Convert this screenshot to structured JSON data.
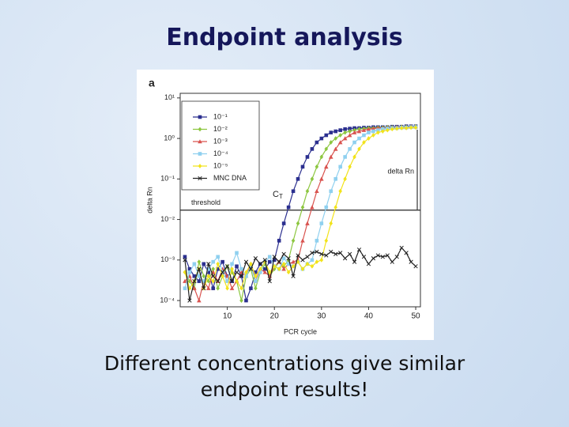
{
  "slide_title": "Endpoint analysis",
  "caption": [
    "Different concentrations give similar",
    "endpoint results!"
  ],
  "chart_data": {
    "type": "line",
    "panel_label": "a",
    "x_label": "PCR cycle",
    "y_label": "delta Rn",
    "log_y": true,
    "xlim": [
      0,
      51
    ],
    "ylim": [
      7e-05,
      13
    ],
    "xticks": [
      10,
      20,
      30,
      40,
      50
    ],
    "yticks": [
      {
        "value": 10,
        "label": "10¹"
      },
      {
        "value": 1,
        "label": "10⁰"
      },
      {
        "value": 0.1,
        "label": "10⁻¹"
      },
      {
        "value": 0.01,
        "label": "10⁻²"
      },
      {
        "value": 0.001,
        "label": "10⁻³"
      },
      {
        "value": 0.0001,
        "label": "10⁻⁴"
      }
    ],
    "threshold": 0.017,
    "threshold_label": "threshold",
    "ct_label": "C",
    "ct_subscript": "T",
    "delta_label": "delta Rn",
    "legend": "upper left",
    "x": [
      1,
      2,
      3,
      4,
      5,
      6,
      7,
      8,
      9,
      10,
      11,
      12,
      13,
      14,
      15,
      16,
      17,
      18,
      19,
      20,
      21,
      22,
      23,
      24,
      25,
      26,
      27,
      28,
      29,
      30,
      31,
      32,
      33,
      34,
      35,
      36,
      37,
      38,
      39,
      40,
      41,
      42,
      43,
      44,
      45,
      46,
      47,
      48,
      49,
      50
    ],
    "series": [
      {
        "name": "10⁻¹",
        "color": "#2b2f8f",
        "marker": "square",
        "values": [
          0.0012,
          0.0006,
          0.0004,
          0.0003,
          0.0008,
          0.0005,
          0.0002,
          0.0006,
          0.0009,
          0.0004,
          0.0003,
          0.0007,
          0.0004,
          0.0001,
          0.0002,
          0.0005,
          0.0008,
          0.0006,
          0.0009,
          0.001,
          0.003,
          0.008,
          0.02,
          0.05,
          0.1,
          0.2,
          0.35,
          0.55,
          0.8,
          1.0,
          1.2,
          1.4,
          1.5,
          1.6,
          1.7,
          1.75,
          1.8,
          1.8,
          1.85,
          1.85,
          1.9,
          1.9,
          1.9,
          1.9,
          1.95,
          1.95,
          1.95,
          2,
          2,
          2
        ]
      },
      {
        "name": "10⁻²",
        "color": "#8cc63f",
        "marker": "diamond",
        "values": [
          0.0005,
          0.0003,
          0.0002,
          0.0009,
          0.0004,
          0.0003,
          0.0006,
          0.0002,
          0.0004,
          0.0007,
          0.0005,
          0.0003,
          0.0001,
          0.0004,
          0.0006,
          0.0002,
          0.0005,
          0.0008,
          0.0004,
          0.0006,
          0.0009,
          0.0007,
          0.001,
          0.003,
          0.008,
          0.02,
          0.05,
          0.1,
          0.2,
          0.35,
          0.55,
          0.8,
          1.0,
          1.2,
          1.4,
          1.5,
          1.6,
          1.7,
          1.75,
          1.8,
          1.8,
          1.85,
          1.85,
          1.9,
          1.9,
          1.9,
          1.95,
          1.95,
          1.95,
          2
        ]
      },
      {
        "name": "10⁻³",
        "color": "#d9534f",
        "marker": "triangle",
        "values": [
          0.0003,
          0.0004,
          0.0002,
          0.0001,
          0.0003,
          0.0002,
          0.0005,
          0.0003,
          0.0006,
          0.0004,
          0.0002,
          0.0003,
          0.0005,
          0.0004,
          0.0008,
          0.0003,
          0.0006,
          0.0005,
          0.0004,
          0.0007,
          0.0009,
          0.0006,
          0.0008,
          0.0009,
          0.001,
          0.003,
          0.008,
          0.02,
          0.05,
          0.1,
          0.2,
          0.35,
          0.55,
          0.8,
          1.0,
          1.2,
          1.4,
          1.5,
          1.6,
          1.7,
          1.75,
          1.8,
          1.8,
          1.85,
          1.85,
          1.9,
          1.9,
          1.9,
          1.95,
          1.95
        ]
      },
      {
        "name": "10⁻⁴",
        "color": "#8fd0ef",
        "marker": "square",
        "values": [
          0.0002,
          0.0005,
          0.0008,
          0.0004,
          0.0003,
          0.0006,
          0.0009,
          0.0012,
          0.0005,
          0.0003,
          0.0008,
          0.0015,
          0.0006,
          0.0004,
          0.0007,
          0.0003,
          0.0005,
          0.0009,
          0.0012,
          0.0007,
          0.0006,
          0.0011,
          0.0008,
          0.0007,
          0.0009,
          0.0006,
          0.0008,
          0.001,
          0.003,
          0.008,
          0.02,
          0.05,
          0.1,
          0.2,
          0.35,
          0.55,
          0.8,
          1.0,
          1.2,
          1.4,
          1.5,
          1.6,
          1.7,
          1.75,
          1.8,
          1.8,
          1.85,
          1.85,
          1.9,
          1.9
        ]
      },
      {
        "name": "10⁻⁵",
        "color": "#f2e31b",
        "marker": "diamond",
        "values": [
          0.0005,
          0.0002,
          0.0003,
          0.0006,
          0.0002,
          0.0004,
          0.0003,
          0.0008,
          0.0004,
          0.0002,
          0.0006,
          0.0003,
          0.0002,
          0.0005,
          0.0008,
          0.0004,
          0.0006,
          0.0009,
          0.0005,
          0.0007,
          0.0006,
          0.0008,
          0.0005,
          0.0007,
          0.0009,
          0.0006,
          0.0008,
          0.0007,
          0.0009,
          0.001,
          0.003,
          0.008,
          0.02,
          0.05,
          0.1,
          0.2,
          0.35,
          0.55,
          0.8,
          1.0,
          1.2,
          1.4,
          1.5,
          1.6,
          1.7,
          1.75,
          1.8,
          1.8,
          1.85,
          1.85
        ]
      },
      {
        "name": "MNC DNA",
        "color": "#222222",
        "marker": "x",
        "values": [
          0.001,
          0.0001,
          0.0003,
          0.0006,
          0.0002,
          0.0008,
          0.0004,
          0.0003,
          0.0005,
          0.0007,
          0.0003,
          0.0005,
          0.0004,
          0.0009,
          0.0006,
          0.0011,
          0.0008,
          0.001,
          0.0003,
          0.0012,
          0.0009,
          0.0014,
          0.0011,
          0.0004,
          0.0013,
          0.001,
          0.0012,
          0.0015,
          0.0016,
          0.0014,
          0.0013,
          0.0016,
          0.0014,
          0.0015,
          0.0011,
          0.0014,
          0.0009,
          0.0018,
          0.0012,
          0.0008,
          0.0011,
          0.0013,
          0.0012,
          0.0013,
          0.0009,
          0.0012,
          0.002,
          0.0015,
          0.0009,
          0.0007
        ]
      }
    ]
  }
}
